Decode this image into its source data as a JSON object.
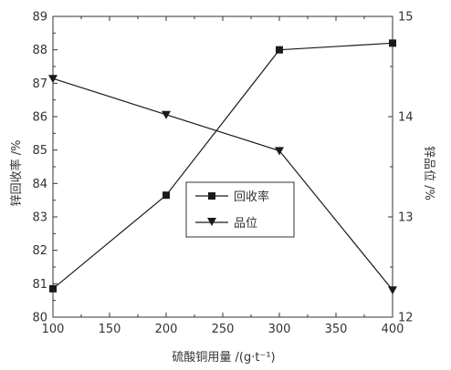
{
  "chart_data": {
    "type": "line",
    "xlabel": "硫酸铜用量 /(g·t⁻¹)",
    "ylabel_left": "锌回收率 /%",
    "ylabel_right": "锌品位 /%",
    "x": [
      100,
      200,
      300,
      400
    ],
    "xlim": [
      100,
      400
    ],
    "x_ticks": [
      "100",
      "150",
      "200",
      "250",
      "300",
      "350",
      "400"
    ],
    "ylim_left": [
      80,
      89
    ],
    "y_ticks_left": [
      "80",
      "81",
      "82",
      "83",
      "84",
      "85",
      "86",
      "87",
      "88",
      "89"
    ],
    "ylim_right": [
      12,
      15
    ],
    "y_ticks_right": [
      "12",
      "13",
      "14",
      "15"
    ],
    "grid": false,
    "legend_position": "center-right",
    "series": [
      {
        "name": "回收率",
        "axis": "left",
        "marker": "square",
        "values": [
          80.85,
          83.65,
          88.0,
          88.2
        ]
      },
      {
        "name": "品位",
        "axis": "right",
        "marker": "triangle-down",
        "values": [
          14.38,
          14.02,
          13.66,
          12.27
        ]
      }
    ]
  },
  "colors": {
    "axis": "#333333",
    "series": "#1a1a1a"
  }
}
